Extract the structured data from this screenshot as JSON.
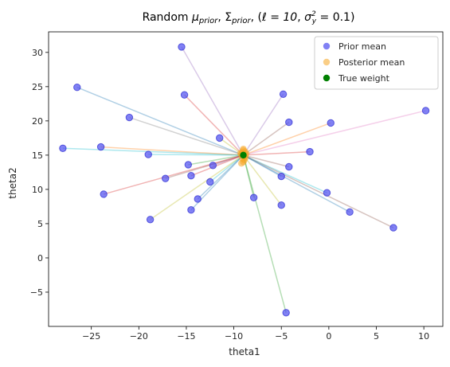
{
  "chart_data": {
    "type": "scatter",
    "title": "Random μprior, Σprior, (ℓ = 10, σy² = 0.1)",
    "title_parts": {
      "random": "Random ",
      "mu": "μ",
      "prior_sub": "prior",
      "sigma": "Σ",
      "sep1": ", ",
      "sep2": ", (",
      "ell_eq": "ℓ = 10",
      "sep3": ", ",
      "sigma_y": "σ",
      "y_sub": "y",
      "sq_sup": "2",
      "eq_end": " = 0.1)"
    },
    "xlabel": "theta1",
    "ylabel": "theta2",
    "xlim": [
      -29.5,
      12
    ],
    "ylim": [
      -10,
      33
    ],
    "xticks": [
      -25,
      -20,
      -15,
      -10,
      -5,
      0,
      5,
      10
    ],
    "xtick_labels": [
      "−25",
      "−20",
      "−15",
      "−10",
      "−5",
      "0",
      "5",
      "10"
    ],
    "yticks": [
      -5,
      0,
      5,
      10,
      15,
      20,
      25,
      30
    ],
    "ytick_labels": [
      "−5",
      "0",
      "5",
      "10",
      "15",
      "20",
      "25",
      "30"
    ],
    "grid": false,
    "legend_position": "top-right",
    "true_weight": {
      "x": -9.0,
      "y": 15.0
    },
    "series": [
      {
        "name": "Prior mean",
        "color": "#4c4cf0",
        "points": [
          [
            -15.5,
            30.8
          ],
          [
            -26.5,
            24.9
          ],
          [
            -15.2,
            23.8
          ],
          [
            -4.8,
            23.9
          ],
          [
            -21.0,
            20.5
          ],
          [
            -4.2,
            19.8
          ],
          [
            0.2,
            19.7
          ],
          [
            10.2,
            21.5
          ],
          [
            -11.5,
            17.5
          ],
          [
            -28.0,
            16.0
          ],
          [
            -24.0,
            16.2
          ],
          [
            -19.0,
            15.1
          ],
          [
            -2.0,
            15.5
          ],
          [
            -14.8,
            13.6
          ],
          [
            -12.2,
            13.5
          ],
          [
            -4.2,
            13.3
          ],
          [
            -14.5,
            12.0
          ],
          [
            -17.2,
            11.6
          ],
          [
            -5.0,
            11.9
          ],
          [
            -12.5,
            11.1
          ],
          [
            -23.7,
            9.3
          ],
          [
            -0.2,
            9.5
          ],
          [
            -13.8,
            8.6
          ],
          [
            -7.9,
            8.8
          ],
          [
            -5.0,
            7.7
          ],
          [
            -14.5,
            7.0
          ],
          [
            2.2,
            6.7
          ],
          [
            -18.8,
            5.6
          ],
          [
            6.8,
            4.4
          ],
          [
            -4.5,
            -8.0
          ]
        ]
      },
      {
        "name": "Posterior mean",
        "color": "#f5a623",
        "points": [
          [
            -9.0,
            15.7
          ],
          [
            -9.1,
            15.4
          ],
          [
            -8.8,
            15.5
          ],
          [
            -9.2,
            15.1
          ],
          [
            -8.9,
            15.0
          ],
          [
            -9.0,
            14.8
          ],
          [
            -9.1,
            14.5
          ],
          [
            -8.9,
            14.3
          ],
          [
            -9.0,
            14.0
          ],
          [
            -9.2,
            13.8
          ],
          [
            -8.8,
            14.6
          ],
          [
            -9.3,
            15.3
          ],
          [
            -8.7,
            15.2
          ],
          [
            -9.0,
            15.9
          ],
          [
            -8.8,
            14.9
          ]
        ]
      },
      {
        "name": "True weight",
        "color": "#008000",
        "points": [
          [
            -9.0,
            15.0
          ]
        ]
      }
    ],
    "line_colors": [
      "#9467bd",
      "#1f77b4",
      "#d62728",
      "#9467bd",
      "#7f7f7f",
      "#8c564b",
      "#ff7f0e",
      "#e377c2",
      "#bcbd22",
      "#17becf",
      "#ff7f0e",
      "#17becf",
      "#d62728",
      "#2ca02c",
      "#9467bd",
      "#8c564b",
      "#d62728",
      "#8c564b",
      "#1f77b4",
      "#17becf",
      "#d62728",
      "#17becf",
      "#1f77b4",
      "#2ca02c",
      "#bcbd22",
      "#1f77b4",
      "#1f77b4",
      "#bcbd22",
      "#8c564b",
      "#2ca02c"
    ]
  }
}
